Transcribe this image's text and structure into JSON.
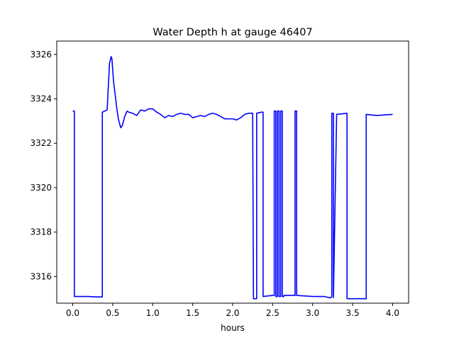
{
  "chart_data": {
    "type": "line",
    "title": "Water Depth h at gauge 46407",
    "xlabel": "hours",
    "ylabel": "",
    "xlim": [
      -0.2,
      4.2
    ],
    "ylim": [
      3314.8,
      3326.6
    ],
    "xticks": [
      0.0,
      0.5,
      1.0,
      1.5,
      2.0,
      2.5,
      3.0,
      3.5,
      4.0
    ],
    "xtick_labels": [
      "0.0",
      "0.5",
      "1.0",
      "1.5",
      "2.0",
      "2.5",
      "3.0",
      "3.5",
      "4.0"
    ],
    "yticks": [
      3316,
      3318,
      3320,
      3322,
      3324,
      3326
    ],
    "ytick_labels": [
      "3316",
      "3318",
      "3320",
      "3322",
      "3324",
      "3326"
    ],
    "grid": false,
    "series": [
      {
        "color": "#0000ff",
        "x": [
          0.0,
          0.02,
          0.02,
          0.1,
          0.2,
          0.3,
          0.37,
          0.37,
          0.43,
          0.44,
          0.46,
          0.48,
          0.49,
          0.5,
          0.51,
          0.53,
          0.55,
          0.57,
          0.6,
          0.62,
          0.65,
          0.68,
          0.7,
          0.75,
          0.8,
          0.85,
          0.9,
          0.95,
          1.0,
          1.05,
          1.1,
          1.15,
          1.2,
          1.25,
          1.3,
          1.35,
          1.4,
          1.45,
          1.5,
          1.55,
          1.6,
          1.65,
          1.7,
          1.75,
          1.8,
          1.85,
          1.9,
          1.95,
          2.0,
          2.05,
          2.1,
          2.15,
          2.2,
          2.25,
          2.26,
          2.26,
          2.3,
          2.3,
          2.36,
          2.38,
          2.38,
          2.5,
          2.52,
          2.52,
          2.54,
          2.54,
          2.56,
          2.56,
          2.58,
          2.58,
          2.6,
          2.6,
          2.62,
          2.62,
          2.64,
          2.64,
          2.76,
          2.78,
          2.78,
          2.8,
          2.8,
          3.0,
          3.15,
          3.2,
          3.23,
          3.24,
          3.24,
          3.26,
          3.26,
          3.3,
          3.43,
          3.43,
          3.67,
          3.67,
          3.8,
          4.0
        ],
        "y": [
          3323.45,
          3323.45,
          3315.1,
          3315.1,
          3315.1,
          3315.08,
          3315.08,
          3323.4,
          3323.5,
          3324.2,
          3325.6,
          3325.9,
          3325.8,
          3325.3,
          3324.8,
          3324.2,
          3323.6,
          3323.1,
          3322.7,
          3322.8,
          3323.2,
          3323.45,
          3323.4,
          3323.35,
          3323.25,
          3323.5,
          3323.45,
          3323.55,
          3323.55,
          3323.4,
          3323.3,
          3323.15,
          3323.25,
          3323.2,
          3323.3,
          3323.35,
          3323.3,
          3323.3,
          3323.15,
          3323.2,
          3323.25,
          3323.2,
          3323.3,
          3323.35,
          3323.3,
          3323.2,
          3323.1,
          3323.1,
          3323.1,
          3323.05,
          3323.15,
          3323.3,
          3323.35,
          3323.35,
          3315.0,
          3315.0,
          3315.0,
          3323.35,
          3323.4,
          3323.4,
          3315.1,
          3315.15,
          3315.15,
          3323.45,
          3323.45,
          3315.1,
          3315.1,
          3323.45,
          3323.45,
          3315.1,
          3315.1,
          3323.45,
          3323.45,
          3315.1,
          3315.1,
          3315.15,
          3315.15,
          3315.15,
          3323.45,
          3323.45,
          3315.15,
          3315.1,
          3315.1,
          3315.05,
          3315.05,
          3315.1,
          3323.35,
          3323.35,
          3315.05,
          3323.3,
          3323.35,
          3315.0,
          3315.0,
          3323.3,
          3323.25,
          3323.3
        ]
      }
    ]
  }
}
